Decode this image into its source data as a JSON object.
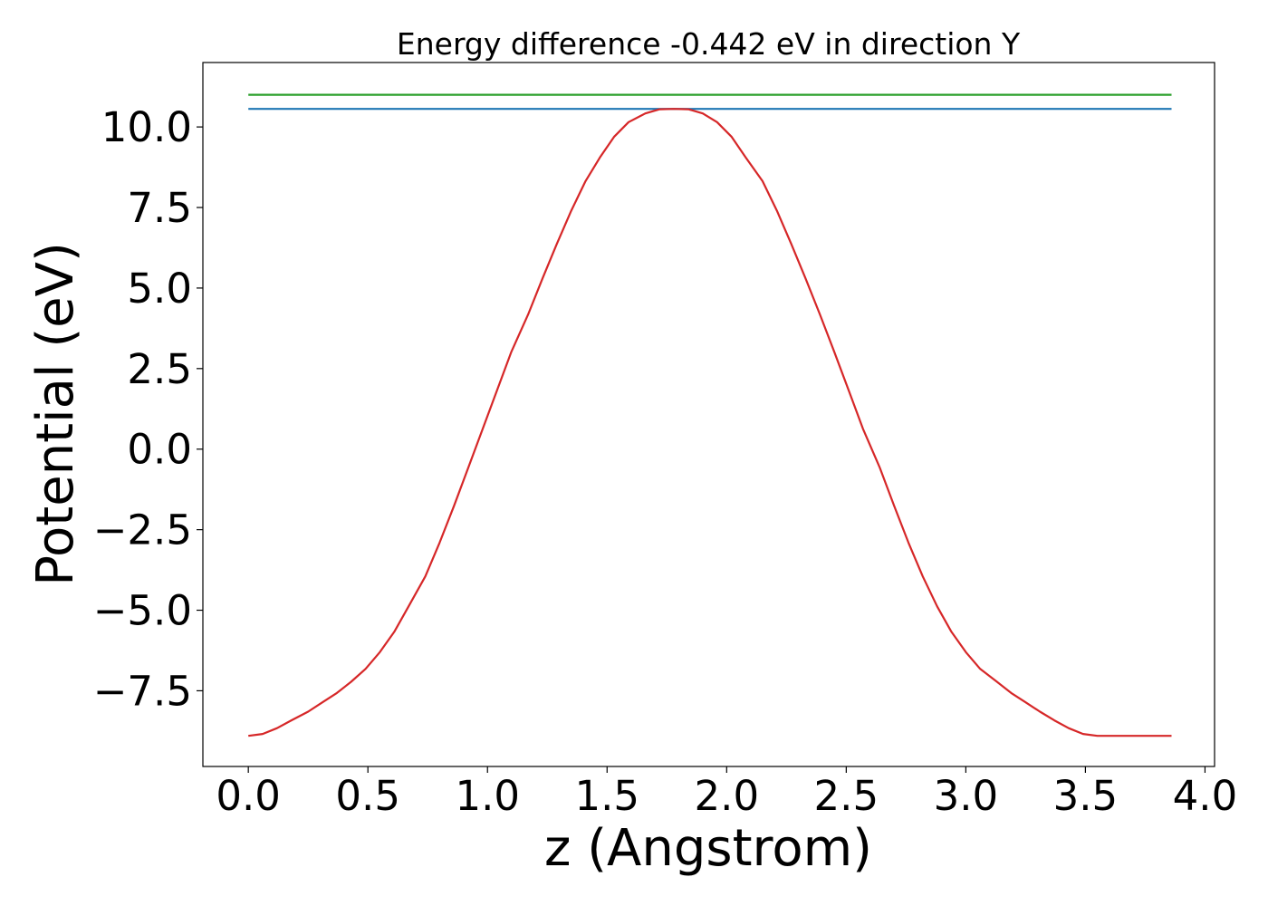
{
  "chart_data": {
    "type": "line",
    "title": "Energy difference -0.442 eV in direction Y",
    "xlabel": "z (Angstrom)",
    "ylabel": "Potential (eV)",
    "xlim": [
      -0.19,
      4.04
    ],
    "ylim": [
      -9.85,
      12.0
    ],
    "x_ticks": [
      0.0,
      0.5,
      1.0,
      1.5,
      2.0,
      2.5,
      3.0,
      3.5,
      4.0
    ],
    "x_tick_labels": [
      "0.0",
      "0.5",
      "1.0",
      "1.5",
      "2.0",
      "2.5",
      "3.0",
      "3.5",
      "4.0"
    ],
    "y_ticks": [
      -7.5,
      -5.0,
      -2.5,
      0.0,
      2.5,
      5.0,
      7.5,
      10.0
    ],
    "y_tick_labels": [
      "−7.5",
      "−5.0",
      "−2.5",
      "0.0",
      "2.5",
      "5.0",
      "7.5",
      "10.0"
    ],
    "grid": false,
    "series": [
      {
        "color": "#2ca02c",
        "x": [
          0.0,
          3.86
        ],
        "y": [
          11.0,
          11.0
        ]
      },
      {
        "color": "#1f77b4",
        "x": [
          0.0,
          3.86
        ],
        "y": [
          10.56,
          10.56
        ]
      },
      {
        "color": "#d62728",
        "x": [
          0.0,
          0.06,
          0.12,
          0.18,
          0.25,
          0.31,
          0.37,
          0.43,
          0.49,
          0.55,
          0.61,
          0.67,
          0.74,
          0.8,
          0.86,
          0.92,
          0.98,
          1.04,
          1.1,
          1.17,
          1.23,
          1.29,
          1.35,
          1.41,
          1.47,
          1.53,
          1.59,
          1.66,
          1.72,
          1.78,
          1.84,
          1.9,
          1.96,
          2.02,
          2.08,
          2.15,
          2.21,
          2.27,
          2.33,
          2.39,
          2.45,
          2.51,
          2.57,
          2.64,
          2.7,
          2.76,
          2.82,
          2.88,
          2.94,
          3.0,
          3.06,
          3.13,
          3.19,
          3.25,
          3.31,
          3.37,
          3.43,
          3.49,
          3.55,
          3.62,
          3.68,
          3.74,
          3.8,
          3.86
        ],
        "y": [
          -8.9,
          -8.84,
          -8.66,
          -8.42,
          -8.15,
          -7.86,
          -7.57,
          -7.22,
          -6.82,
          -6.3,
          -5.67,
          -4.88,
          -3.95,
          -2.9,
          -1.76,
          -0.57,
          0.63,
          1.83,
          3.02,
          4.18,
          5.3,
          6.37,
          7.4,
          8.32,
          9.05,
          9.7,
          10.15,
          10.42,
          10.55,
          10.56,
          10.55,
          10.42,
          10.15,
          9.7,
          9.05,
          8.32,
          7.4,
          6.37,
          5.3,
          4.18,
          3.02,
          1.83,
          0.63,
          -0.57,
          -1.76,
          -2.9,
          -3.95,
          -4.88,
          -5.67,
          -6.3,
          -6.82,
          -7.22,
          -7.57,
          -7.86,
          -8.15,
          -8.42,
          -8.66,
          -8.84,
          -8.9,
          -8.9,
          -8.9,
          -8.9,
          -8.9,
          -8.9
        ]
      }
    ]
  }
}
